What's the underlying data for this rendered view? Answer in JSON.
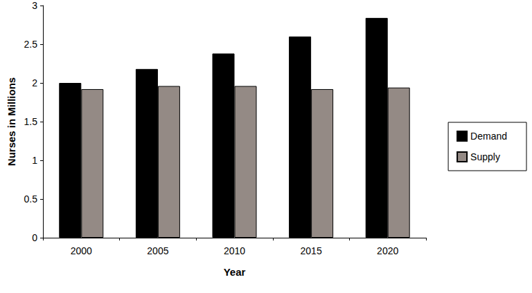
{
  "chart_data": {
    "type": "bar",
    "x_label": "Year",
    "y_label": "Nurses in Millions",
    "categories": [
      "2000",
      "2005",
      "2010",
      "2015",
      "2020"
    ],
    "series": [
      {
        "name": "Demand",
        "color": "#000000",
        "values": [
          2.0,
          2.18,
          2.38,
          2.6,
          2.84
        ]
      },
      {
        "name": "Supply",
        "color": "#948a85",
        "values": [
          1.92,
          1.96,
          1.96,
          1.92,
          1.94
        ]
      }
    ],
    "ylim": [
      0,
      3
    ],
    "yticks": [
      0,
      0.5,
      1,
      1.5,
      2,
      2.5,
      3
    ],
    "grid": false,
    "legend": "right"
  }
}
